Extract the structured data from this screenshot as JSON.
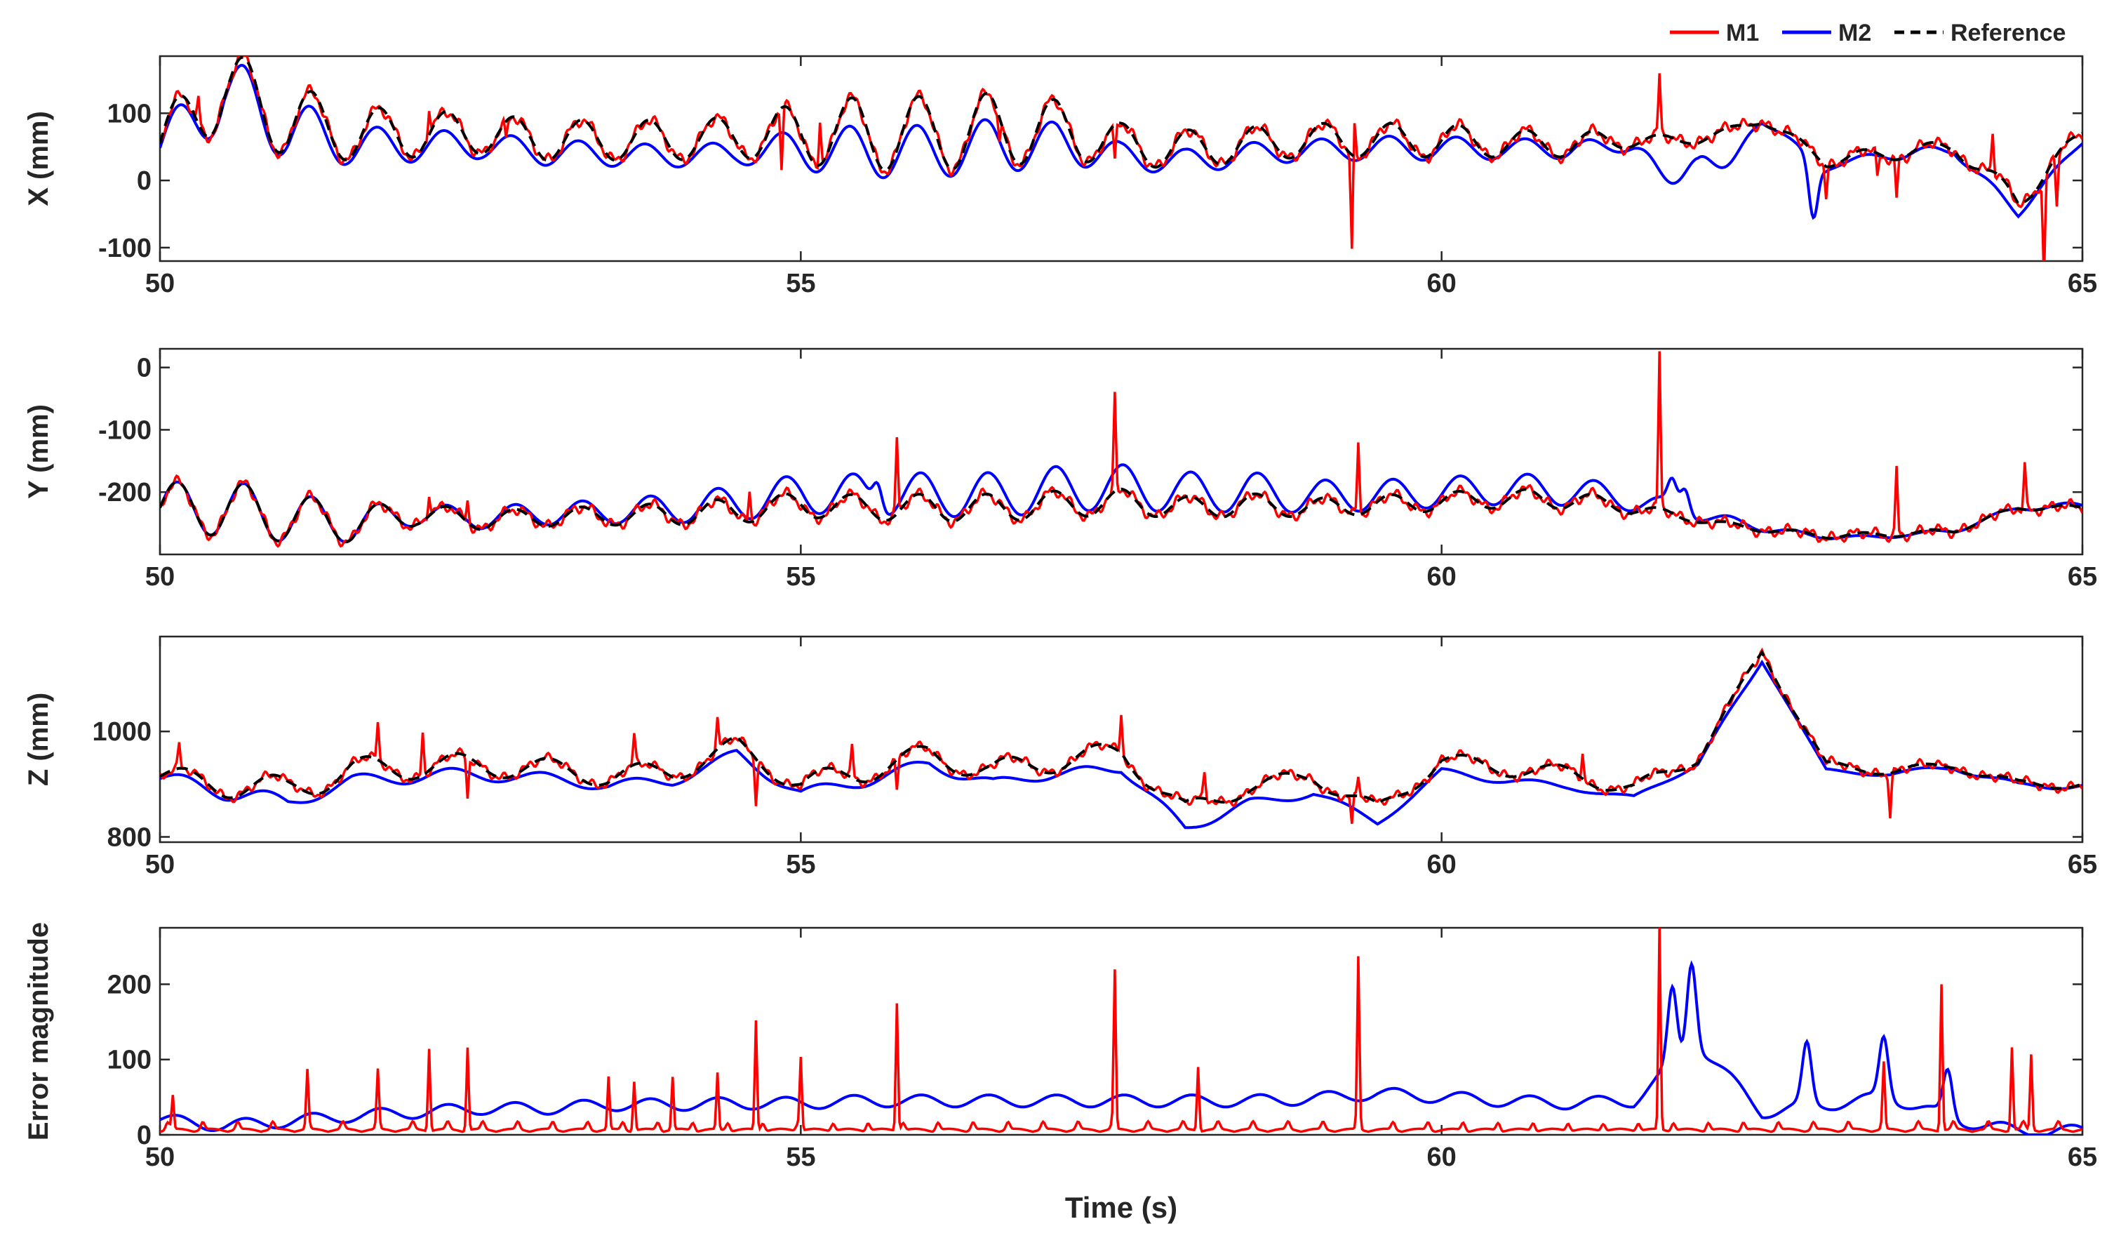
{
  "legend": {
    "position": "top-right",
    "entries": [
      {
        "label": "M1",
        "color": "#ff0000",
        "style": "solid"
      },
      {
        "label": "M2",
        "color": "#0000ff",
        "style": "solid"
      },
      {
        "label": "Reference",
        "color": "#000000",
        "style": "dashed"
      }
    ]
  },
  "chart_data": [
    {
      "type": "line",
      "ylabel": "X (mm)",
      "xlabel": "",
      "xlim": [
        50,
        65
      ],
      "ylim": [
        -120,
        185
      ],
      "xticks": [
        50,
        55,
        60,
        65
      ],
      "yticks": [
        -100,
        0,
        100
      ],
      "grid": false,
      "series": [
        {
          "name": "M1",
          "color": "#ff0000"
        },
        {
          "name": "M2",
          "color": "#0000ff"
        },
        {
          "name": "Reference",
          "color": "#000000",
          "dash": true
        }
      ],
      "x": [
        50,
        50.5,
        51,
        51.5,
        52,
        52.5,
        53,
        53.5,
        54,
        54.5,
        55,
        55.5,
        56,
        56.5,
        57,
        57.5,
        58,
        58.5,
        59,
        59.5,
        60,
        60.5,
        61,
        61.5,
        62,
        62.5,
        63,
        63.5,
        64,
        64.5,
        65
      ],
      "waves": {
        "amplitude": [
          40,
          60,
          55,
          40,
          35,
          30,
          30,
          30,
          30,
          30,
          45,
          55,
          55,
          55,
          45,
          30,
          30,
          25,
          25,
          25,
          25,
          20,
          20,
          10,
          5,
          5,
          10,
          10,
          10,
          15,
          10
        ],
        "frequency": 1.9
      },
      "reference_trend": [
        55,
        140,
        90,
        70,
        70,
        70,
        60,
        60,
        60,
        65,
        70,
        70,
        70,
        75,
        75,
        55,
        45,
        55,
        60,
        60,
        60,
        55,
        55,
        60,
        60,
        90,
        30,
        40,
        50,
        -30,
        70
      ],
      "m2_offset": [
        -15,
        -10,
        -20,
        -30,
        -30,
        -30,
        -30,
        -35,
        -40,
        -40,
        -40,
        -45,
        -45,
        -40,
        -35,
        -30,
        -30,
        -25,
        -25,
        -20,
        -20,
        -15,
        -10,
        -20,
        -110,
        0,
        -20,
        0,
        -10,
        -30,
        -20
      ],
      "m1_spikes": [
        [
          50.3,
          40
        ],
        [
          52.1,
          45
        ],
        [
          52.7,
          -30
        ],
        [
          54.85,
          -90
        ],
        [
          55.15,
          70
        ],
        [
          56.55,
          -40
        ],
        [
          57.45,
          -60
        ],
        [
          59.3,
          -150
        ],
        [
          59.32,
          50
        ],
        [
          61.7,
          90
        ],
        [
          63.0,
          -45
        ],
        [
          63.4,
          -40
        ],
        [
          63.55,
          -60
        ],
        [
          64.3,
          60
        ],
        [
          64.7,
          -160
        ],
        [
          64.8,
          -70
        ]
      ],
      "m2_spikes": [
        [
          62.9,
          -85
        ]
      ]
    },
    {
      "type": "line",
      "ylabel": "Y (mm)",
      "xlabel": "",
      "xlim": [
        50,
        65
      ],
      "ylim": [
        -300,
        30
      ],
      "xticks": [
        50,
        55,
        60,
        65
      ],
      "yticks": [
        -200,
        -100,
        0
      ],
      "grid": false,
      "series": [
        {
          "name": "M1",
          "color": "#ff0000"
        },
        {
          "name": "M2",
          "color": "#0000ff"
        },
        {
          "name": "Reference",
          "color": "#000000",
          "dash": true
        }
      ],
      "x": [
        50,
        50.5,
        51,
        51.5,
        52,
        52.5,
        53,
        53.5,
        54,
        54.5,
        55,
        55.5,
        56,
        56.5,
        57,
        57.5,
        58,
        58.5,
        59,
        59.5,
        60,
        60.5,
        61,
        61.5,
        62,
        62.5,
        63,
        63.5,
        64,
        64.5,
        65
      ],
      "waves": {
        "amplitude": [
          40,
          45,
          40,
          30,
          18,
          15,
          15,
          15,
          18,
          20,
          20,
          20,
          22,
          22,
          22,
          20,
          18,
          18,
          15,
          15,
          15,
          15,
          15,
          10,
          4,
          4,
          4,
          4,
          4,
          4,
          4
        ],
        "frequency": 1.9
      },
      "reference_trend": [
        -225,
        -225,
        -240,
        -250,
        -235,
        -245,
        -240,
        -238,
        -235,
        -230,
        -220,
        -225,
        -225,
        -225,
        -220,
        -215,
        -225,
        -220,
        -225,
        -220,
        -215,
        -210,
        -212,
        -225,
        -245,
        -260,
        -270,
        -268,
        -262,
        -225,
        -225
      ],
      "m2_offset": [
        0,
        0,
        0,
        0,
        0,
        5,
        10,
        10,
        15,
        20,
        30,
        35,
        35,
        35,
        40,
        40,
        40,
        35,
        30,
        25,
        25,
        25,
        25,
        20,
        15,
        5,
        -5,
        -5,
        0,
        0,
        5
      ],
      "m1_spikes": [
        [
          52.1,
          40
        ],
        [
          52.4,
          35
        ],
        [
          54.6,
          50
        ],
        [
          55.75,
          120
        ],
        [
          57.45,
          150
        ],
        [
          59.35,
          120
        ],
        [
          61.7,
          250
        ],
        [
          63.55,
          110
        ],
        [
          64.55,
          70
        ]
      ],
      "m2_spikes": [
        [
          55.6,
          40
        ],
        [
          61.8,
          40
        ],
        [
          61.9,
          40
        ]
      ]
    },
    {
      "type": "line",
      "ylabel": "Z (mm)",
      "xlabel": "",
      "xlim": [
        50,
        65
      ],
      "ylim": [
        790,
        1180
      ],
      "xticks": [
        50,
        55,
        60,
        65
      ],
      "yticks": [
        800,
        1000
      ],
      "grid": false,
      "series": [
        {
          "name": "M1",
          "color": "#ff0000"
        },
        {
          "name": "M2",
          "color": "#0000ff"
        },
        {
          "name": "Reference",
          "color": "#000000",
          "dash": true
        }
      ],
      "x": [
        50,
        50.5,
        51,
        51.5,
        52,
        52.5,
        53,
        53.5,
        54,
        54.5,
        55,
        55.5,
        56,
        56.5,
        57,
        57.5,
        58,
        58.5,
        59,
        59.5,
        60,
        60.5,
        61,
        61.5,
        62,
        62.5,
        63,
        63.5,
        64,
        64.5,
        65
      ],
      "waves": {
        "amplitude": [
          18,
          25,
          25,
          25,
          25,
          22,
          20,
          20,
          20,
          20,
          20,
          22,
          22,
          22,
          22,
          20,
          18,
          15,
          15,
          15,
          15,
          15,
          15,
          15,
          10,
          8,
          8,
          8,
          8,
          8,
          8
        ],
        "frequency": 1.4
      },
      "reference_trend": [
        915,
        900,
        890,
        925,
        935,
        935,
        930,
        915,
        925,
        970,
        900,
        925,
        955,
        925,
        945,
        960,
        850,
        895,
        915,
        850,
        945,
        930,
        920,
        890,
        950,
        1150,
        935,
        925,
        935,
        900,
        900
      ],
      "m2_offset": [
        -10,
        -20,
        -40,
        -35,
        -30,
        -30,
        -30,
        -30,
        -30,
        -25,
        -30,
        -30,
        -30,
        -40,
        -40,
        -50,
        -55,
        -55,
        -50,
        -40,
        -35,
        -40,
        -40,
        -30,
        -15,
        -25,
        -15,
        -10,
        -5,
        -5,
        -5
      ],
      "m1_spikes": [
        [
          50.15,
          45
        ],
        [
          51.7,
          70
        ],
        [
          52.05,
          80
        ],
        [
          52.4,
          -80
        ],
        [
          53.7,
          55
        ],
        [
          54.35,
          55
        ],
        [
          54.65,
          -80
        ],
        [
          55.4,
          60
        ],
        [
          55.75,
          -60
        ],
        [
          57.5,
          75
        ],
        [
          58.15,
          45
        ],
        [
          59.3,
          -60
        ],
        [
          59.35,
          40
        ],
        [
          61.1,
          50
        ],
        [
          63.5,
          -80
        ]
      ],
      "m2_spikes": []
    },
    {
      "type": "line",
      "ylabel": "Error magnitude",
      "xlabel": "Time (s)",
      "xlim": [
        50,
        65
      ],
      "ylim": [
        0,
        275
      ],
      "xticks": [
        50,
        55,
        60,
        65
      ],
      "yticks": [
        0,
        100,
        200
      ],
      "grid": false,
      "series": [
        {
          "name": "M1",
          "color": "#ff0000"
        },
        {
          "name": "M2",
          "color": "#0000ff"
        }
      ],
      "x": [
        50,
        50.5,
        51,
        51.5,
        52,
        52.5,
        53,
        53.5,
        54,
        54.5,
        55,
        55.5,
        56,
        56.5,
        57,
        57.5,
        58,
        58.5,
        59,
        59.5,
        60,
        60.5,
        61,
        61.5,
        62,
        62.5,
        63,
        63.5,
        64,
        64.5,
        65
      ],
      "m2_trend": [
        20,
        12,
        18,
        25,
        30,
        35,
        35,
        40,
        40,
        42,
        42,
        45,
        45,
        45,
        45,
        45,
        45,
        45,
        48,
        55,
        50,
        45,
        42,
        45,
        120,
        30,
        40,
        50,
        20,
        5,
        5
      ],
      "m1_baseline": 8,
      "m1_spikes": [
        [
          50.1,
          45
        ],
        [
          51.15,
          70
        ],
        [
          51.7,
          70
        ],
        [
          52.1,
          110
        ],
        [
          52.4,
          110
        ],
        [
          53.5,
          70
        ],
        [
          53.7,
          65
        ],
        [
          54.0,
          70
        ],
        [
          54.35,
          75
        ],
        [
          54.65,
          145
        ],
        [
          55.0,
          95
        ],
        [
          55.75,
          170
        ],
        [
          57.45,
          205
        ],
        [
          58.1,
          85
        ],
        [
          59.35,
          220
        ],
        [
          61.7,
          270
        ],
        [
          63.45,
          80
        ],
        [
          63.9,
          195
        ],
        [
          64.45,
          110
        ],
        [
          64.6,
          100
        ]
      ],
      "m2_spikes": [
        [
          61.8,
          100
        ],
        [
          61.95,
          120
        ],
        [
          62.85,
          80
        ],
        [
          63.45,
          80
        ],
        [
          63.95,
          60
        ]
      ]
    }
  ]
}
